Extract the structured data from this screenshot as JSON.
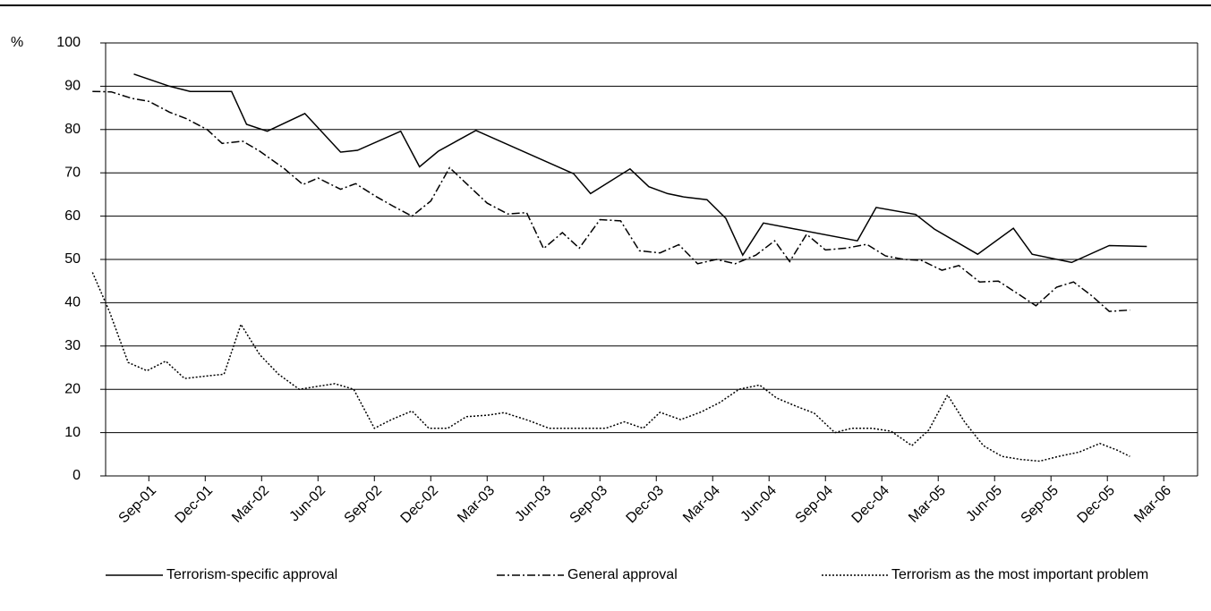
{
  "chart_data": {
    "type": "line",
    "y_unit": "%",
    "xlim": [
      0.7,
      58.8
    ],
    "xticks": [
      {
        "value": 3,
        "label": "Sep-01"
      },
      {
        "value": 6,
        "label": "Dec-01"
      },
      {
        "value": 9,
        "label": "Mar-02"
      },
      {
        "value": 12,
        "label": "Jun-02"
      },
      {
        "value": 15,
        "label": "Sep-02"
      },
      {
        "value": 18,
        "label": "Dec-02"
      },
      {
        "value": 21,
        "label": "Mar-03"
      },
      {
        "value": 24,
        "label": "Jun-03"
      },
      {
        "value": 27,
        "label": "Sep-03"
      },
      {
        "value": 30,
        "label": "Dec-03"
      },
      {
        "value": 33,
        "label": "Mar-04"
      },
      {
        "value": 36,
        "label": "Jun-04"
      },
      {
        "value": 39,
        "label": "Sep-04"
      },
      {
        "value": 42,
        "label": "Dec-04"
      },
      {
        "value": 45,
        "label": "Mar-05"
      },
      {
        "value": 48,
        "label": "Jun-05"
      },
      {
        "value": 51,
        "label": "Sep-05"
      },
      {
        "value": 54,
        "label": "Dec-05"
      },
      {
        "value": 57,
        "label": "Mar-06"
      }
    ],
    "ylim": [
      0,
      100
    ],
    "yticks": [
      0,
      10,
      20,
      30,
      40,
      50,
      60,
      70,
      80,
      90,
      100
    ],
    "grid": true,
    "legend": "bottom",
    "series": [
      {
        "name": "Terrorism-specific approval",
        "color": "#000000",
        "dash": "solid",
        "x": [
          2.2,
          4.1,
          5.2,
          7.4,
          8.2,
          9.3,
          11.3,
          13.2,
          14.1,
          16.4,
          17.4,
          18.4,
          20.4,
          25.6,
          26.5,
          28.6,
          29.6,
          30.6,
          31.5,
          32.7,
          33.7,
          34.6,
          35.7,
          40.7,
          41.7,
          43.8,
          44.8,
          47.1,
          49,
          50,
          52.1,
          54.1,
          56.1
        ],
        "values": [
          92.8,
          90,
          88.8,
          88.8,
          81.2,
          79.6,
          83.7,
          74.8,
          75.2,
          79.6,
          71.4,
          75,
          79.8,
          69.8,
          65.2,
          70.9,
          66.8,
          65.2,
          64.4,
          63.8,
          59.5,
          51,
          58.4,
          54.3,
          62,
          60.4,
          57,
          51.2,
          57.2,
          51.2,
          49.3,
          53.2,
          53
        ]
      },
      {
        "name": "General approval",
        "color": "#000000",
        "dash": "dashdot",
        "x": [
          0,
          1,
          2.1,
          3,
          4.1,
          5,
          6.1,
          6.9,
          8,
          8.9,
          10.2,
          11.2,
          12,
          13.2,
          14,
          15.1,
          16,
          17,
          18,
          19,
          19.9,
          21,
          22.1,
          23.1,
          24,
          25,
          25.9,
          27,
          28.1,
          29.1,
          30.2,
          31.2,
          32.2,
          33.2,
          34.2,
          35.3,
          36.3,
          37.1,
          38,
          39,
          40.1,
          41.2,
          42.2,
          43.2,
          44.1,
          45.2,
          46.1,
          47.2,
          48.2,
          49.3,
          50.2,
          51.3,
          52.2,
          53.2,
          54.1,
          55.2
        ],
        "values": [
          88.8,
          88.7,
          87.2,
          86.5,
          84,
          82.5,
          80,
          76.8,
          77.3,
          75,
          71,
          67.3,
          68.8,
          66.2,
          67.5,
          64.5,
          62.3,
          60,
          63.5,
          71.2,
          67.5,
          63,
          60.5,
          60.8,
          52.5,
          56.2,
          52.6,
          59.2,
          58.9,
          52,
          51.5,
          53.4,
          49,
          50,
          49,
          51,
          54.3,
          49.5,
          55.8,
          52.2,
          52.6,
          53.5,
          50.8,
          50,
          49.8,
          47.5,
          48.6,
          44.8,
          45,
          41.9,
          39.3,
          43.6,
          44.8,
          41.5,
          38,
          38.3
        ]
      },
      {
        "name": "Terrorism as the most important problem",
        "color": "#000000",
        "dash": "dotted",
        "x": [
          0,
          0.9,
          1.9,
          2.9,
          3.9,
          4.9,
          5.9,
          7,
          7.9,
          8.9,
          9.9,
          11,
          12,
          12.9,
          13.9,
          15,
          15.9,
          17,
          17.9,
          18.9,
          19.9,
          21,
          21.9,
          23.2,
          24.3,
          25.2,
          26.3,
          27.3,
          28.3,
          29.3,
          30.2,
          31.3,
          32.4,
          33.4,
          34.4,
          35.5,
          36.4,
          37.5,
          38.4,
          39.5,
          40.4,
          41.5,
          42.5,
          43.6,
          44.5,
          45.5,
          46.4,
          47.4,
          48.4,
          49.4,
          50.4,
          51.4,
          52.5,
          53.6,
          54.5,
          55.2
        ],
        "values": [
          47,
          38,
          26.2,
          24.3,
          26.5,
          22.5,
          23,
          23.5,
          35,
          28,
          23.5,
          20,
          20.7,
          21.3,
          20,
          11,
          13,
          15,
          11,
          11,
          13.7,
          14,
          14.6,
          12.8,
          11,
          11,
          11,
          11,
          12.5,
          11,
          14.7,
          13,
          14.8,
          17,
          20,
          21,
          18,
          16,
          14.5,
          10,
          11,
          11,
          10.3,
          7,
          10.6,
          18.7,
          12.5,
          7,
          4.5,
          3.8,
          3.4,
          4.5,
          5.5,
          7.5,
          6,
          4.5
        ]
      }
    ]
  }
}
